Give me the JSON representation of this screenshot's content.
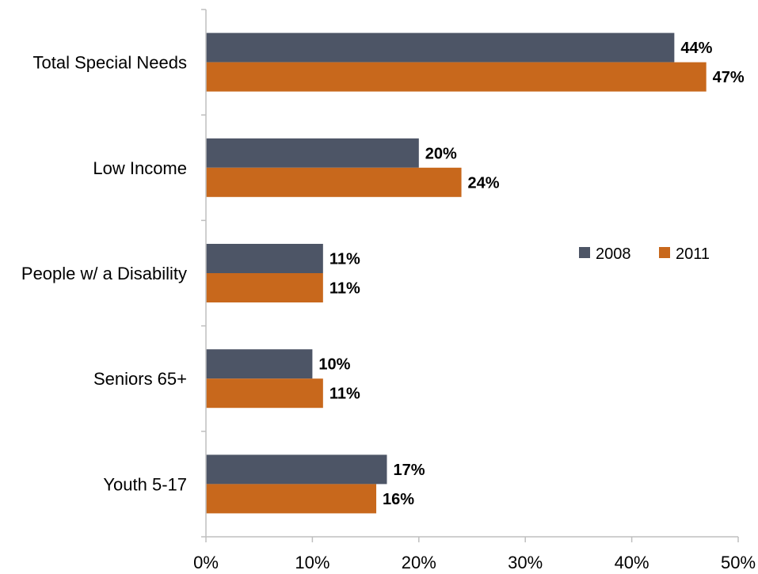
{
  "chart_data": {
    "type": "bar",
    "orientation": "horizontal",
    "categories": [
      "Total Special Needs",
      "Low Income",
      "People w/ a Disability",
      "Seniors 65+",
      "Youth 5-17"
    ],
    "series": [
      {
        "name": "2008",
        "values": [
          44,
          20,
          11,
          10,
          17
        ],
        "labels": [
          "44%",
          "20%",
          "11%",
          "10%",
          "17%"
        ],
        "color": "#4d5566"
      },
      {
        "name": "2011",
        "values": [
          47,
          24,
          11,
          11,
          16
        ],
        "labels": [
          "47%",
          "24%",
          "11%",
          "11%",
          "16%"
        ],
        "color": "#c8681c"
      }
    ],
    "xlim": [
      0,
      50
    ],
    "xticks": [
      0,
      10,
      20,
      30,
      40,
      50
    ],
    "xtick_labels": [
      "0%",
      "10%",
      "20%",
      "30%",
      "40%",
      "50%"
    ],
    "title": "",
    "xlabel": "",
    "ylabel": "",
    "grid": false,
    "legend_position": "right"
  }
}
